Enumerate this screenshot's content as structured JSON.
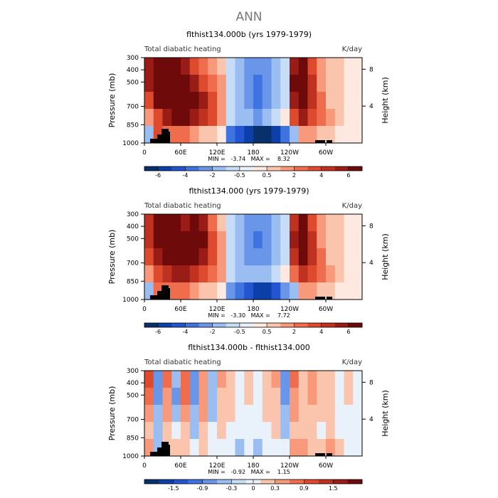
{
  "main_title": "ANN",
  "chart_data": [
    {
      "type": "heatmap",
      "title": "flthist134.000b (yrs 1979-1979)",
      "subtitle_left": "Total diabatic heating",
      "subtitle_right": "K/day",
      "ylabel": "Pressure (mb)",
      "ylabel_right": "Height (km)",
      "y_ticks": [
        "300",
        "400",
        "500",
        "700",
        "850",
        "1000"
      ],
      "y_tick_values": [
        300,
        400,
        500,
        700,
        850,
        1000
      ],
      "height_ticks": [
        "8",
        "4"
      ],
      "height_tick_values": [
        8,
        4
      ],
      "x_ticks": [
        "0",
        "60E",
        "120E",
        "180",
        "120W",
        "60W"
      ],
      "x_tick_values": [
        0,
        60,
        120,
        180,
        240,
        300
      ],
      "xlim": [
        0,
        360
      ],
      "ylim": [
        1000,
        300
      ],
      "stats": "MIN =   -3.74   MAX =    8.32",
      "colorbar_labels": [
        "-6",
        "-4",
        "-2",
        "-0.5",
        "0.5",
        "2",
        "4",
        "6"
      ],
      "colorbar_colors": [
        "#08306b",
        "#0d3fa8",
        "#2255cf",
        "#3f73df",
        "#6a96ea",
        "#9abdf2",
        "#c6dcf7",
        "#e9f1fb",
        "#fde9df",
        "#fbc4ad",
        "#f7997a",
        "#ef6d4d",
        "#de4a2e",
        "#c03220",
        "#9a1c16",
        "#6e0a0a"
      ],
      "cells": [
        [
          60,
          80,
          110,
          80,
          60,
          40,
          30,
          20,
          10,
          -10,
          -20,
          -30,
          -30,
          -30,
          -20,
          -10,
          60,
          80,
          40,
          20,
          10,
          10,
          0,
          0
        ],
        [
          60,
          80,
          100,
          90,
          70,
          60,
          40,
          30,
          20,
          -10,
          -20,
          -30,
          -40,
          -30,
          -20,
          -10,
          70,
          90,
          50,
          20,
          10,
          10,
          0,
          0
        ],
        [
          40,
          70,
          80,
          80,
          80,
          70,
          60,
          40,
          20,
          -10,
          -20,
          -30,
          -40,
          -30,
          -20,
          -10,
          60,
          80,
          50,
          30,
          10,
          10,
          0,
          0
        ],
        [
          20,
          40,
          60,
          70,
          70,
          60,
          50,
          40,
          20,
          -10,
          -20,
          -20,
          -30,
          -20,
          -10,
          0,
          40,
          60,
          40,
          30,
          20,
          10,
          0,
          0
        ],
        [
          -20,
          40,
          30,
          30,
          30,
          20,
          10,
          10,
          0,
          -40,
          -50,
          -60,
          -70,
          -70,
          -60,
          -40,
          -20,
          20,
          20,
          10,
          10,
          0,
          0,
          0
        ]
      ]
    },
    {
      "type": "heatmap",
      "title": "flthist134.000 (yrs 1979-1979)",
      "subtitle_left": "Total diabatic heating",
      "subtitle_right": "K/day",
      "ylabel": "Pressure (mb)",
      "ylabel_right": "Height (km)",
      "y_ticks": [
        "300",
        "400",
        "500",
        "700",
        "850",
        "1000"
      ],
      "y_tick_values": [
        300,
        400,
        500,
        700,
        850,
        1000
      ],
      "height_ticks": [
        "8",
        "4"
      ],
      "height_tick_values": [
        8,
        4
      ],
      "x_ticks": [
        "0",
        "60E",
        "120E",
        "180",
        "120W",
        "60W"
      ],
      "x_tick_values": [
        0,
        60,
        120,
        180,
        240,
        300
      ],
      "xlim": [
        0,
        360
      ],
      "ylim": [
        1000,
        300
      ],
      "stats": "MIN =   -3.30   MAX =    7.72",
      "colorbar_labels": [
        "-6",
        "-4",
        "-2",
        "-0.5",
        "0.5",
        "2",
        "4",
        "6"
      ],
      "colorbar_colors": [
        "#08306b",
        "#0d3fa8",
        "#2255cf",
        "#3f73df",
        "#6a96ea",
        "#9abdf2",
        "#c6dcf7",
        "#e9f1fb",
        "#fde9df",
        "#fbc4ad",
        "#f7997a",
        "#ef6d4d",
        "#de4a2e",
        "#c03220",
        "#9a1c16",
        "#6e0a0a"
      ],
      "cells": [
        [
          50,
          70,
          90,
          70,
          60,
          70,
          60,
          30,
          10,
          -10,
          -20,
          -30,
          -30,
          -30,
          -20,
          -10,
          50,
          70,
          40,
          20,
          10,
          10,
          0,
          0
        ],
        [
          50,
          70,
          90,
          80,
          70,
          80,
          70,
          40,
          20,
          -10,
          -20,
          -30,
          -40,
          -30,
          -20,
          -10,
          60,
          80,
          50,
          20,
          10,
          10,
          0,
          0
        ],
        [
          40,
          60,
          80,
          70,
          70,
          70,
          60,
          40,
          20,
          -10,
          -20,
          -30,
          -30,
          -30,
          -20,
          -10,
          50,
          70,
          50,
          30,
          10,
          10,
          0,
          0
        ],
        [
          20,
          40,
          50,
          60,
          60,
          50,
          40,
          30,
          20,
          -10,
          -20,
          -20,
          -20,
          -20,
          -10,
          0,
          30,
          50,
          40,
          30,
          20,
          10,
          0,
          0
        ],
        [
          -20,
          30,
          30,
          30,
          30,
          20,
          10,
          10,
          0,
          -30,
          -40,
          -50,
          -60,
          -60,
          -50,
          -30,
          -20,
          20,
          20,
          10,
          10,
          0,
          0,
          0
        ]
      ]
    },
    {
      "type": "heatmap",
      "title": "flthist134.000b - flthist134.000",
      "subtitle_left": "Total diabatic heating",
      "subtitle_right": "K/day",
      "ylabel": "Pressure (mb)",
      "ylabel_right": "Height (km)",
      "y_ticks": [
        "300",
        "400",
        "500",
        "700",
        "850",
        "1000"
      ],
      "y_tick_values": [
        300,
        400,
        500,
        700,
        850,
        1000
      ],
      "height_ticks": [
        "8",
        "4"
      ],
      "height_tick_values": [
        8,
        4
      ],
      "x_ticks": [
        "0",
        "60E",
        "120E",
        "180",
        "120W",
        "60W"
      ],
      "x_tick_values": [
        0,
        60,
        120,
        180,
        240,
        300
      ],
      "xlim": [
        0,
        360
      ],
      "ylim": [
        1000,
        300
      ],
      "stats": "MIN =   -0.92   MAX =    1.15",
      "colorbar_labels": [
        "-1.5",
        "-0.9",
        "-0.3",
        "0",
        "0.3",
        "0.9",
        "1.5"
      ],
      "colorbar_colors": [
        "#08306b",
        "#0d3fa8",
        "#2255cf",
        "#3f73df",
        "#6a96ea",
        "#9abdf2",
        "#c6dcf7",
        "#e9f1fb",
        "#fbc4ad",
        "#f7997a",
        "#ef6d4d",
        "#de4a2e",
        "#c03220",
        "#9a1c16",
        "#6e0a0a"
      ],
      "cells": [
        [
          0.9,
          -0.6,
          0.6,
          -0.3,
          0.7,
          -0.6,
          0.5,
          -0.3,
          0.3,
          0.1,
          0,
          0.1,
          0,
          0.1,
          0.3,
          -0.6,
          0.6,
          0.2,
          0.3,
          0.1,
          0.2,
          0,
          0.1,
          0
        ],
        [
          0.8,
          -0.5,
          0.5,
          -0.4,
          0.6,
          -0.5,
          0.4,
          -0.3,
          0.2,
          0.1,
          0,
          0.1,
          0,
          0.1,
          0.2,
          -0.5,
          0.4,
          0.2,
          0.3,
          0.1,
          0.1,
          0,
          0.1,
          0
        ],
        [
          0.4,
          -0.3,
          0.4,
          -0.2,
          0.3,
          -0.3,
          0.3,
          -0.2,
          0.1,
          0.1,
          0,
          0,
          0,
          0.1,
          0.1,
          -0.3,
          0.3,
          0.1,
          0.2,
          0.1,
          0.1,
          0,
          0,
          0
        ],
        [
          0.2,
          -0.2,
          0.2,
          -0.1,
          0.2,
          -0.2,
          0.1,
          -0.1,
          0.1,
          0,
          0,
          0,
          0,
          0,
          0.1,
          -0.2,
          0.2,
          0.1,
          0.1,
          0,
          0.1,
          0,
          0,
          0
        ],
        [
          0.5,
          -0.3,
          0.2,
          0.1,
          0.1,
          0,
          0.1,
          0,
          -0.1,
          0,
          -0.2,
          -0.1,
          -0.2,
          -0.1,
          -0.1,
          0,
          0.3,
          0.4,
          0.2,
          0.1,
          0.3,
          0.1,
          0,
          0
        ]
      ]
    }
  ]
}
